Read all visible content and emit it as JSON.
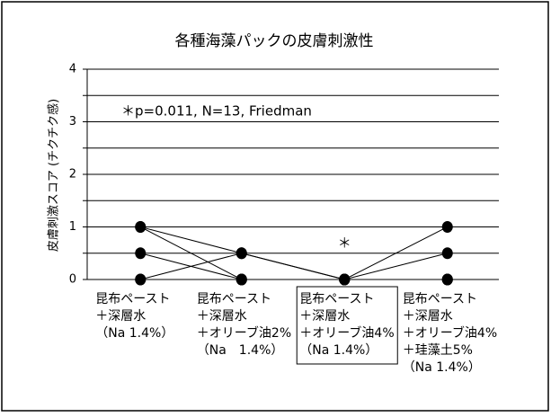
{
  "chart_data": {
    "type": "line",
    "title": "各種海藻パックの皮膚刺激性",
    "y_label": "皮膚刺激スコア (チクチク感)",
    "annotation": "＊p=0.011, N=13, Friedman",
    "significance_mark": "＊",
    "categories": [
      [
        "昆布ペースト",
        "＋深層水",
        "（Na 1.4%）"
      ],
      [
        "昆布ペースト",
        "＋深層水",
        "＋オリーブ油2%",
        "（Na　1.4%）"
      ],
      [
        "昆布ペースト",
        "＋深層水",
        "＋オリーブ油4%",
        "（Na 1.4%）"
      ],
      [
        "昆布ペースト",
        "＋深層水",
        "＋オリーブ油4%",
        "＋珪藻土5%",
        "（Na 1.4%）"
      ]
    ],
    "series": [
      {
        "color": "#000000",
        "values": [
          1,
          0.5,
          0,
          1
        ]
      },
      {
        "color": "#000000",
        "values": [
          1,
          0,
          0,
          0.5
        ]
      },
      {
        "color": "#000000",
        "values": [
          0.5,
          0,
          0,
          0
        ]
      },
      {
        "color": "#000000",
        "values": [
          0,
          0.5,
          0,
          0
        ]
      },
      {
        "color": "#000000",
        "values": [
          0,
          0,
          0,
          0
        ]
      }
    ],
    "ylim": [
      0,
      4
    ],
    "yticks": [
      0,
      1,
      2,
      3,
      4
    ],
    "minor_yticks": [
      0.5,
      1.5,
      2.5,
      3.5
    ],
    "grid": true,
    "boxed_category": 2
  }
}
